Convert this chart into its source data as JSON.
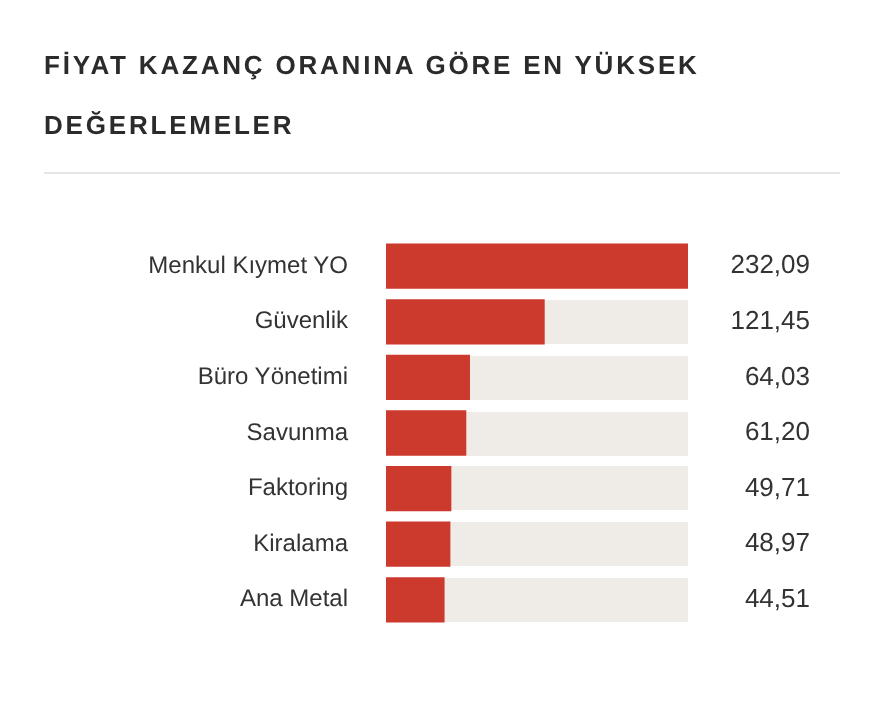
{
  "chart_data": {
    "type": "bar",
    "orientation": "horizontal",
    "title": "FİYAT KAZANÇ ORANINA GÖRE EN YÜKSEK DEĞERLEMELER",
    "categories": [
      "Menkul Kıymet YO",
      "Güvenlik",
      "Büro Yönetimi",
      "Savunma",
      "Faktoring",
      "Kiralama",
      "Ana Metal"
    ],
    "values": [
      232.09,
      121.45,
      64.03,
      61.2,
      49.71,
      48.97,
      44.51
    ],
    "value_labels": [
      "232,09",
      "121,45",
      "64,03",
      "61,20",
      "49,71",
      "48,97",
      "44,51"
    ],
    "color": "#cc3a2e",
    "xlim": [
      0,
      232.09
    ],
    "legend": false
  }
}
